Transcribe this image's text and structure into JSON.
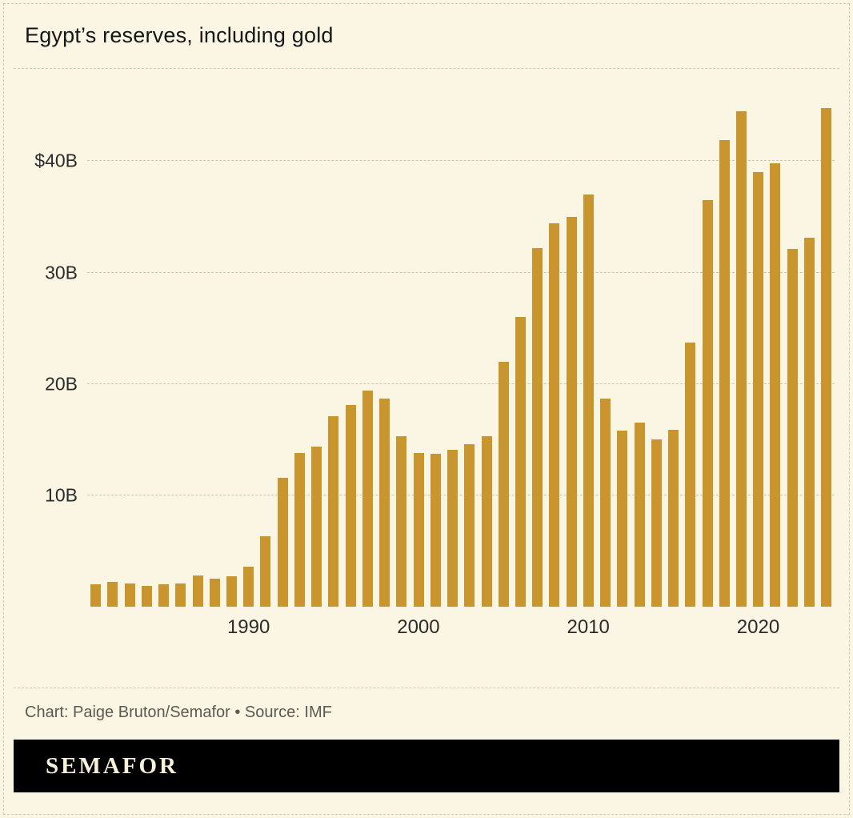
{
  "header": {
    "title": "Egypt’s reserves, including gold"
  },
  "footer": {
    "credit": "Chart: Paige Bruton/Semafor • Source: IMF",
    "logo": "SEMAFOR"
  },
  "chart_data": {
    "type": "bar",
    "title": "Egypt’s reserves, including gold",
    "unit": "USD billions",
    "x": [
      1981,
      1982,
      1983,
      1984,
      1985,
      1986,
      1987,
      1988,
      1989,
      1990,
      1991,
      1992,
      1993,
      1994,
      1995,
      1996,
      1997,
      1998,
      1999,
      2000,
      2001,
      2002,
      2003,
      2004,
      2005,
      2006,
      2007,
      2008,
      2009,
      2010,
      2011,
      2012,
      2013,
      2014,
      2015,
      2016,
      2017,
      2018,
      2019,
      2020,
      2021,
      2022,
      2023,
      2024
    ],
    "values": [
      2.0,
      2.2,
      2.1,
      1.9,
      2.0,
      2.1,
      2.8,
      2.5,
      2.7,
      3.6,
      6.3,
      11.6,
      13.8,
      14.4,
      17.1,
      18.1,
      19.4,
      18.7,
      15.3,
      13.8,
      13.7,
      14.1,
      14.6,
      15.3,
      22.0,
      26.0,
      32.2,
      34.4,
      35.0,
      37.0,
      18.7,
      15.8,
      16.5,
      15.0,
      15.9,
      23.7,
      36.5,
      41.9,
      44.5,
      39.0,
      39.8,
      32.1,
      33.1,
      44.8
    ],
    "y_ticks": [
      {
        "label": "$40B",
        "value": 40
      },
      {
        "label": "30B",
        "value": 30
      },
      {
        "label": "20B",
        "value": 20
      },
      {
        "label": "10B",
        "value": 10
      }
    ],
    "x_ticks": [
      1990,
      2000,
      2010,
      2020
    ],
    "ylim": [
      0,
      46
    ],
    "grid": true,
    "legend": false,
    "bar_color": "#c8952f",
    "background_color": "#faf6e3"
  }
}
